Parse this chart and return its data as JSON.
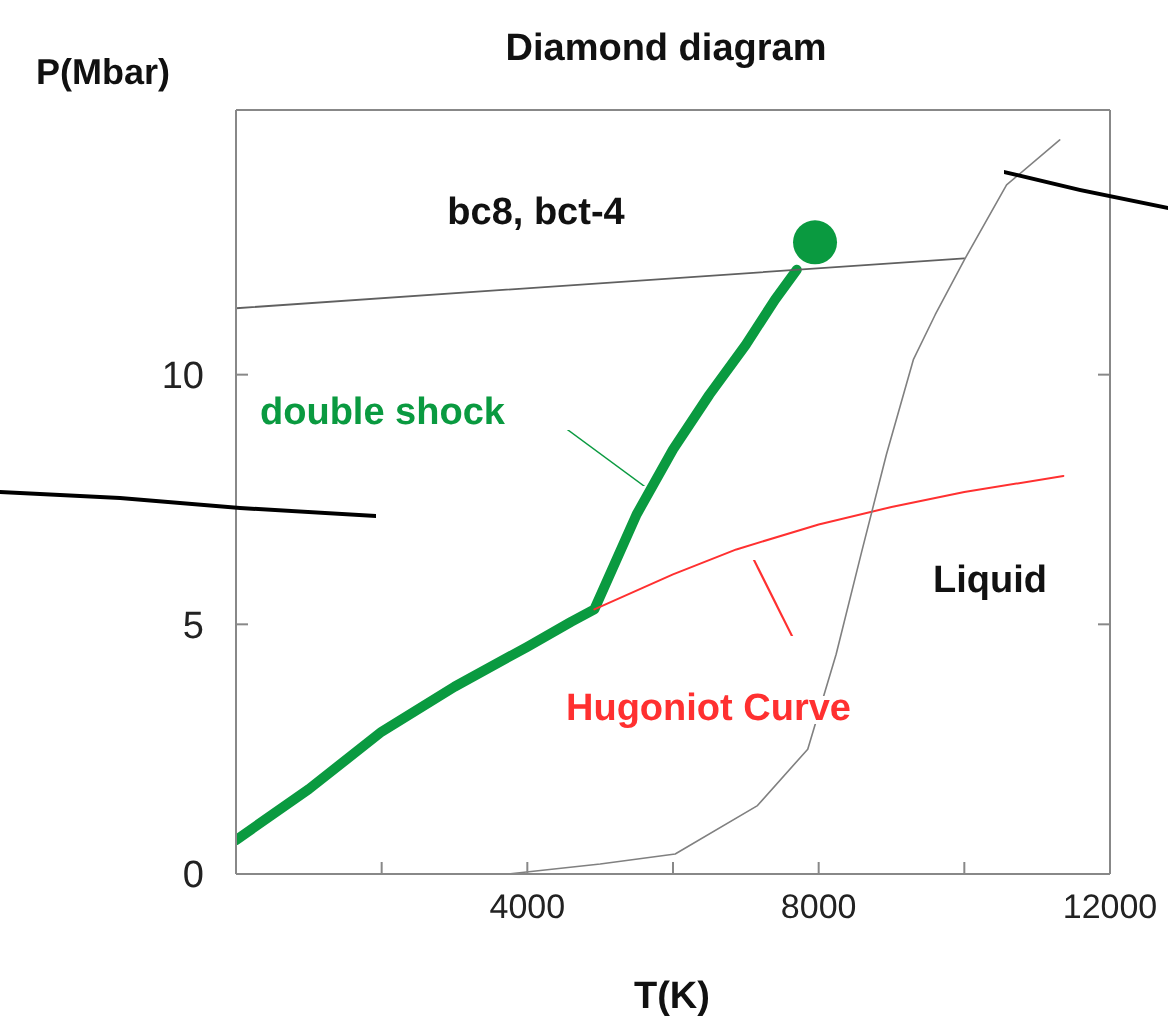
{
  "chart_data": {
    "type": "line",
    "title": "Diamond diagram",
    "xlabel": "T(K)",
    "ylabel": "P(Mbar)",
    "xlim": [
      0,
      12000
    ],
    "ylim": [
      0,
      15.3
    ],
    "xticks": [
      {
        "value": 2000,
        "label": null
      },
      4000,
      {
        "value": 6000,
        "label": null
      },
      8000,
      {
        "value": 10000,
        "label": null
      },
      12000
    ],
    "yticks": [
      0,
      5,
      10
    ],
    "grid": false,
    "legend": false,
    "marker": "none",
    "line_style": "solid",
    "annotations": [
      "bc8, bct-4",
      "Liquid"
    ],
    "series": [
      {
        "name": "double shock",
        "color": "#0a9a40",
        "x": [
          0,
          1000,
          2000,
          3000,
          4000,
          4600,
          4920,
          5500,
          6000,
          6500,
          7000,
          7400,
          7700
        ],
        "values": [
          0.68,
          1.7,
          2.85,
          3.75,
          4.55,
          5.05,
          5.3,
          7.2,
          8.5,
          9.6,
          10.6,
          11.5,
          12.1
        ]
      },
      {
        "type": "scatter",
        "color": "#0a9a40",
        "marker": "circle",
        "x": [
          7950
        ],
        "values": [
          12.65
        ]
      },
      {
        "name": "Hugoniot Curve",
        "color": "#ff3030",
        "x": [
          4920,
          6000,
          6870,
          8000,
          9000,
          10000,
          11360
        ],
        "values": [
          5.3,
          6.0,
          6.5,
          7.0,
          7.35,
          7.65,
          7.97
        ]
      },
      {
        "color": "#606060",
        "x": [
          0,
          10000
        ],
        "values": [
          11.33,
          12.33
        ]
      },
      {
        "color": "#808080",
        "x": [
          3730,
          5000,
          6030,
          7160,
          7850,
          8240,
          8590,
          8930,
          9300,
          9600,
          10000,
          10580,
          11310
        ],
        "values": [
          0,
          0.2,
          0.4,
          1.37,
          2.5,
          4.4,
          6.45,
          8.4,
          10.3,
          11.2,
          12.3,
          13.8,
          14.7
        ]
      }
    ]
  }
}
